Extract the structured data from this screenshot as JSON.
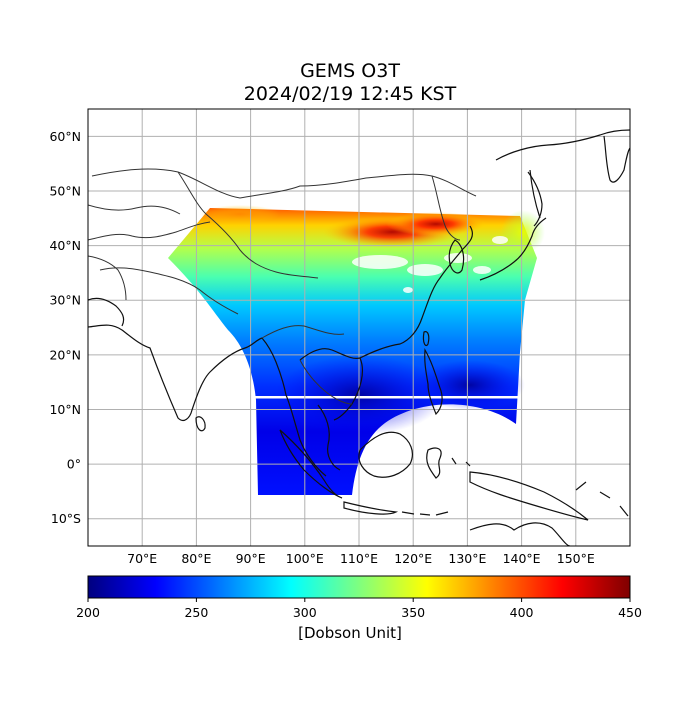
{
  "title": "GEMS O3T",
  "subtitle": "2024/02/19 12:45 KST",
  "map": {
    "lat_labels": [
      "60°N",
      "50°N",
      "40°N",
      "30°N",
      "20°N",
      "10°N",
      "0°",
      "10°S"
    ],
    "lat_values": [
      60,
      50,
      40,
      30,
      20,
      10,
      0,
      -10
    ],
    "lon_labels": [
      "70°E",
      "80°E",
      "90°E",
      "100°E",
      "110°E",
      "120°E",
      "130°E",
      "140°E",
      "150°E"
    ],
    "lon_values": [
      70,
      80,
      90,
      100,
      110,
      120,
      130,
      140,
      150
    ],
    "lon_range": [
      60,
      160
    ],
    "lat_range": [
      -15,
      65
    ],
    "grid": true
  },
  "colorbar": {
    "label": "[Dobson Unit]",
    "ticks": [
      "200",
      "250",
      "300",
      "350",
      "400",
      "450"
    ],
    "tick_values": [
      200,
      250,
      300,
      350,
      400,
      450
    ],
    "range": [
      200,
      450
    ],
    "colormap": "jet"
  },
  "colors": {
    "jet": [
      "#00007f",
      "#0000ff",
      "#007fff",
      "#00ffff",
      "#7fff7f",
      "#ffff00",
      "#ff7f00",
      "#ff0000",
      "#7f0000"
    ]
  }
}
